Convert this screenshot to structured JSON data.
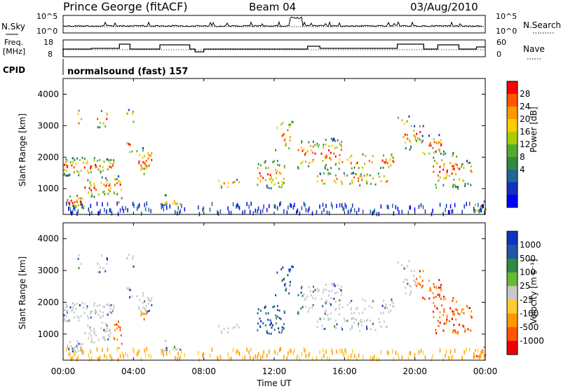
{
  "header": {
    "station": "Prince George (fitACF)",
    "beam": "Beam 04",
    "date": "03/Aug/2010"
  },
  "labels": {
    "nsky": "N.Sky",
    "nsearch": "N.Search",
    "freq_line1": "Freq.",
    "freq_line2": "[MHz]",
    "nave": "Nave",
    "cpid": "CPID",
    "cpid_value": "normalsound (fast) 157"
  },
  "noise_axis": {
    "left_top": "10^5",
    "left_bottom": "10^0",
    "right_top": "10^5",
    "right_bottom": "10^0"
  },
  "freq_axis": {
    "left_ticks": [
      "18",
      "8"
    ],
    "right_ticks": [
      "60",
      "0"
    ]
  },
  "power_scale": {
    "label": "Power [dB]",
    "ticks": [
      "28",
      "24",
      "20",
      "16",
      "12",
      "8",
      "4"
    ],
    "colors": [
      "#ff0000",
      "#ff5500",
      "#ff9900",
      "#ffcc00",
      "#aacc00",
      "#55aa33",
      "#338844",
      "#226699",
      "#1133bb",
      "#0000ff"
    ]
  },
  "velocity_scale": {
    "label": "Velocity [m s⁻¹]",
    "ticks": [
      "1000",
      "500",
      "100",
      "25",
      "-25",
      "-100",
      "-500",
      "-1000"
    ],
    "colors": [
      "#1133bb",
      "#2255aa",
      "#338844",
      "#66bb33",
      "#c8c8c8",
      "#ffcc33",
      "#ff9900",
      "#ff5500",
      "#ee0000"
    ]
  },
  "chart_data": [
    {
      "type": "heatmap",
      "title": "Power",
      "ylabel": "Slant Range [km]",
      "xlabel": "Time UT",
      "x_ticks": [
        "00:00",
        "04:00",
        "08:00",
        "12:00",
        "16:00",
        "20:00",
        "00:00"
      ],
      "y_ticks": [
        1000,
        2000,
        3000,
        4000
      ],
      "ylim": [
        180,
        4500
      ],
      "colorbar": {
        "label": "Power [dB]",
        "ticks": [
          28,
          24,
          20,
          16,
          12,
          8,
          4
        ]
      }
    },
    {
      "type": "heatmap",
      "title": "Velocity",
      "ylabel": "Slant Range [km]",
      "xlabel": "Time UT",
      "x_ticks": [
        "00:00",
        "04:00",
        "08:00",
        "12:00",
        "16:00",
        "20:00",
        "00:00"
      ],
      "y_ticks": [
        1000,
        2000,
        3000,
        4000
      ],
      "ylim": [
        180,
        4500
      ],
      "colorbar": {
        "label": "Velocity [m s⁻¹]",
        "ticks": [
          1000,
          500,
          100,
          25,
          -25,
          -100,
          -500,
          -1000
        ]
      }
    }
  ],
  "axis_titles": {
    "ylabel": "Slant Range [km]",
    "xlabel": "Time UT"
  },
  "x_ticks": [
    "00:00",
    "04:00",
    "08:00",
    "12:00",
    "16:00",
    "20:00",
    "00:00"
  ],
  "y_ticks": [
    "1000",
    "2000",
    "3000",
    "4000"
  ]
}
